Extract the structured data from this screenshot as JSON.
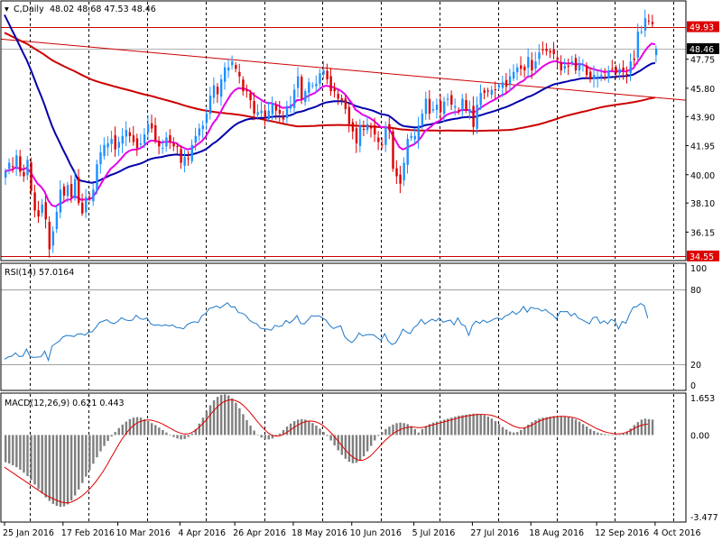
{
  "colors": {
    "background": "#ffffff",
    "frame": "#000000",
    "grid": "#000000",
    "bull": "#1e90ff",
    "bear": "#dc0000",
    "ma_fast": "#e600e6",
    "ma_mid": "#0000aa",
    "ma_slow": "#cc0000",
    "trend": "#cc0000",
    "rsi": "#1e78c8",
    "macd_hist": "#7f7f7f",
    "macd_signal": "#dd0000",
    "price_tag_bg": "#000000",
    "level_tag_bg": "#dd0000"
  },
  "header": {
    "symbol_text": "C,Daily",
    "ohlc_text": "48.02 48.68 47.53 48.46"
  },
  "chart_data": [
    {
      "type": "candlestick",
      "panel": "price",
      "symbol": "C",
      "timeframe": "Daily",
      "ylim": [
        34.3,
        51.6
      ],
      "yticks": [
        "49.93",
        "48.46",
        "47.75",
        "45.80",
        "43.90",
        "41.95",
        "40.00",
        "38.10",
        "36.15",
        "34.55"
      ],
      "current_price": "48.46",
      "horizontal_levels": [
        {
          "label": "49.93",
          "value": 49.93
        },
        {
          "label": "34.55",
          "value": 34.55
        }
      ],
      "last_ohlc": {
        "open": 48.02,
        "high": 48.68,
        "low": 47.53,
        "close": 48.46
      },
      "x_labels": [
        "25 Jan 2016",
        "17 Feb 2016",
        "10 Mar 2016",
        "4 Apr 2016",
        "26 Apr 2016",
        "18 May 2016",
        "10 Jun 2016",
        "5 Jul 2016",
        "27 Jul 2016",
        "18 Aug 2016",
        "12 Sep 2016",
        "4 Oct 2016"
      ],
      "x_label_bar_index": [
        0,
        16,
        31,
        48,
        63,
        79,
        95,
        112,
        128,
        144,
        162,
        178
      ],
      "vertical_grid_bar_index": [
        7,
        23,
        39,
        55,
        71,
        87,
        103,
        119,
        135,
        151,
        167,
        183
      ],
      "close": [
        40.2,
        40.8,
        40.5,
        41.3,
        40.2,
        39.9,
        41.0,
        38.9,
        37.6,
        37.2,
        38.0,
        37.0,
        35.0,
        36.2,
        37.5,
        39.0,
        38.6,
        39.3,
        38.5,
        39.7,
        38.1,
        37.4,
        38.5,
        38.4,
        39.0,
        40.7,
        41.5,
        42.0,
        42.1,
        42.4,
        41.7,
        42.2,
        42.6,
        43.0,
        42.6,
        42.2,
        41.8,
        42.1,
        42.7,
        43.4,
        43.1,
        42.3,
        41.9,
        41.8,
        42.5,
        42.2,
        41.9,
        41.9,
        40.8,
        41.2,
        41.1,
        42.0,
        42.6,
        43.1,
        43.3,
        44.1,
        45.3,
        46.0,
        45.4,
        46.4,
        47.2,
        47.2,
        47.6,
        47.1,
        46.6,
        45.6,
        45.6,
        45.0,
        44.1,
        44.2,
        44.3,
        43.9,
        44.3,
        44.8,
        44.3,
        44.1,
        43.7,
        44.6,
        44.7,
        45.7,
        46.6,
        45.1,
        45.6,
        46.2,
        46.0,
        46.1,
        46.8,
        47.0,
        46.4,
        45.6,
        45.6,
        45.1,
        45.0,
        44.4,
        43.4,
        42.9,
        42.1,
        43.3,
        43.0,
        43.4,
        43.1,
        42.7,
        42.2,
        42.0,
        43.2,
        43.0,
        40.4,
        39.9,
        39.4,
        40.8,
        42.4,
        42.6,
        42.6,
        43.3,
        44.1,
        45.1,
        44.1,
        44.4,
        44.7,
        44.2,
        44.9,
        45.1,
        44.7,
        44.6,
        44.3,
        45.1,
        44.3,
        44.4,
        43.2,
        44.7,
        45.5,
        45.5,
        45.6,
        45.7,
        45.7,
        46.0,
        46.2,
        45.9,
        46.6,
        46.9,
        47.2,
        47.1,
        47.0,
        47.9,
        47.0,
        47.6,
        48.2,
        48.4,
        48.3,
        48.2,
        48.1,
        47.7,
        47.0,
        47.3,
        47.3,
        47.6,
        47.0,
        47.5,
        47.4,
        46.7,
        46.4,
        46.7,
        46.6,
        46.7,
        46.5,
        47.0,
        47.1,
        46.8,
        47.1,
        47.0,
        46.7,
        47.6,
        47.7,
        49.6,
        49.6,
        50.5,
        50.3,
        50.1,
        48.5
      ]
    },
    {
      "type": "line",
      "panel": "rsi",
      "title": "RSI(14) 57.0164",
      "ylim": [
        0,
        100
      ],
      "yticks": [
        "100",
        "80",
        "20",
        "0"
      ],
      "levels": [
        80,
        20
      ],
      "values": [
        24.2,
        26.0,
        26.6,
        29.2,
        26.4,
        26.6,
        32.3,
        26.3,
        25.6,
        25.9,
        26.1,
        30.6,
        23.3,
        34.6,
        36.7,
        38.7,
        42.0,
        43.2,
        42.9,
        42.2,
        44.3,
        44.4,
        43.4,
        45.7,
        46.1,
        49.6,
        53.5,
        54.6,
        55.7,
        53.4,
        52.6,
        54.4,
        57.3,
        55.6,
        55.0,
        55.4,
        59.3,
        56.7,
        56.0,
        57.3,
        52.4,
        51.3,
        51.6,
        50.8,
        51.7,
        50.7,
        51.5,
        49.5,
        49.2,
        48.4,
        51.9,
        53.3,
        54.1,
        53.4,
        58.9,
        60.5,
        64.6,
        65.4,
        66.7,
        65.0,
        67.1,
        69.2,
        65.8,
        65.9,
        61.4,
        60.9,
        59.3,
        55.4,
        53.4,
        52.6,
        49.0,
        48.4,
        48.2,
        47.3,
        51.2,
        50.2,
        50.9,
        55.2,
        53.1,
        55.4,
        59.0,
        52.7,
        52.3,
        55.4,
        58.9,
        58.5,
        58.9,
        57.1,
        55.2,
        51.1,
        48.6,
        49.9,
        50.8,
        42.6,
        39.4,
        37.4,
        40.2,
        45.2,
        42.7,
        43.7,
        43.9,
        43.6,
        41.3,
        39.3,
        44.5,
        38.5,
        36.0,
        37.2,
        42.0,
        48.2,
        45.7,
        44.6,
        49.5,
        51.5,
        56.0,
        52.3,
        54.4,
        56.1,
        54.5,
        57.1,
        53.7,
        54.7,
        55.4,
        51.6,
        57.2,
        52.0,
        50.7,
        43.2,
        51.2,
        54.5,
        52.8,
        55.4,
        53.5,
        54.7,
        56.4,
        57.1,
        55.8,
        58.8,
        59.7,
        62.4,
        60.0,
        62.2,
        66.3,
        61.7,
        65.6,
        64.7,
        64.6,
        62.5,
        63.9,
        61.2,
        59.5,
        56.3,
        62.2,
        62.0,
        62.2,
        58.6,
        60.8,
        56.9,
        55.7,
        54.2,
        52.4,
        57.3,
        58.0,
        52.8,
        54.9,
        52.4,
        56.0,
        54.5,
        48.3,
        54.4,
        52.8,
        60.1,
        65.7,
        66.2,
        68.6,
        66.9,
        57.0
      ]
    },
    {
      "type": "bar",
      "panel": "macd",
      "title": "MACD(12,26,9) 0.621 0.443",
      "ylim": [
        -3.477,
        1.653
      ],
      "yticks": [
        "1.653",
        "0.00",
        "-3.477"
      ],
      "macd": [
        -1.1,
        -1.15,
        -1.22,
        -1.3,
        -1.4,
        -1.52,
        -1.66,
        -1.82,
        -2.0,
        -2.18,
        -2.36,
        -2.52,
        -2.66,
        -2.78,
        -2.86,
        -2.9,
        -2.88,
        -2.8,
        -2.64,
        -2.44,
        -2.2,
        -1.94,
        -1.68,
        -1.42,
        -1.16,
        -0.9,
        -0.66,
        -0.44,
        -0.24,
        -0.06,
        0.12,
        0.28,
        0.42,
        0.54,
        0.64,
        0.7,
        0.72,
        0.7,
        0.64,
        0.56,
        0.48,
        0.4,
        0.3,
        0.2,
        0.1,
        0.0,
        -0.08,
        -0.14,
        -0.18,
        -0.16,
        -0.08,
        0.06,
        0.24,
        0.46,
        0.7,
        0.96,
        1.2,
        1.4,
        1.54,
        1.62,
        1.64,
        1.6,
        1.48,
        1.3,
        1.08,
        0.84,
        0.6,
        0.38,
        0.18,
        0.02,
        -0.1,
        -0.16,
        -0.18,
        -0.14,
        -0.06,
        0.06,
        0.2,
        0.34,
        0.46,
        0.56,
        0.62,
        0.64,
        0.62,
        0.56,
        0.48,
        0.38,
        0.26,
        0.12,
        -0.04,
        -0.22,
        -0.42,
        -0.62,
        -0.8,
        -0.96,
        -1.08,
        -1.14,
        -1.12,
        -1.02,
        -0.86,
        -0.66,
        -0.44,
        -0.22,
        -0.04,
        0.12,
        0.24,
        0.34,
        0.42,
        0.48,
        0.5,
        0.48,
        0.44,
        0.36,
        0.24,
        0.1,
        0.24,
        0.36,
        0.44,
        0.5,
        0.54,
        0.58,
        0.62,
        0.66,
        0.7,
        0.74,
        0.78,
        0.8,
        0.82,
        0.84,
        0.86,
        0.86,
        0.84,
        0.8,
        0.74,
        0.66,
        0.56,
        0.44,
        0.32,
        0.22,
        0.14,
        0.1,
        0.12,
        0.2,
        0.3,
        0.42,
        0.52,
        0.6,
        0.66,
        0.7,
        0.72,
        0.74,
        0.76,
        0.76,
        0.76,
        0.74,
        0.72,
        0.68,
        0.62,
        0.54,
        0.44,
        0.34,
        0.24,
        0.16,
        0.1,
        0.06,
        0.04,
        0.02,
        0.0,
        0.0,
        0.02,
        0.06,
        0.14,
        0.26,
        0.4,
        0.52,
        0.62,
        0.66,
        0.64,
        0.62
      ],
      "signal": [
        -1.3,
        -1.4,
        -1.5,
        -1.6,
        -1.7,
        -1.8,
        -1.9,
        -2.0,
        -2.1,
        -2.2,
        -2.3,
        -2.4,
        -2.48,
        -2.55,
        -2.62,
        -2.68,
        -2.72,
        -2.74,
        -2.72,
        -2.66,
        -2.58,
        -2.48,
        -2.36,
        -2.22,
        -2.06,
        -1.88,
        -1.68,
        -1.46,
        -1.22,
        -0.96,
        -0.7,
        -0.44,
        -0.2,
        0.02,
        0.2,
        0.35,
        0.46,
        0.54,
        0.58,
        0.6,
        0.6,
        0.57,
        0.52,
        0.46,
        0.38,
        0.3,
        0.22,
        0.14,
        0.08,
        0.04,
        0.04,
        0.08,
        0.16,
        0.28,
        0.42,
        0.58,
        0.76,
        0.94,
        1.1,
        1.24,
        1.34,
        1.4,
        1.42,
        1.4,
        1.34,
        1.24,
        1.1,
        0.94,
        0.76,
        0.58,
        0.4,
        0.24,
        0.1,
        0.0,
        -0.04,
        -0.04,
        0.0,
        0.08,
        0.18,
        0.28,
        0.38,
        0.46,
        0.52,
        0.56,
        0.56,
        0.54,
        0.48,
        0.4,
        0.28,
        0.14,
        -0.02,
        -0.2,
        -0.38,
        -0.56,
        -0.72,
        -0.86,
        -0.96,
        -1.02,
        -1.02,
        -0.96,
        -0.86,
        -0.72,
        -0.56,
        -0.4,
        -0.24,
        -0.1,
        0.02,
        0.12,
        0.2,
        0.26,
        0.3,
        0.32,
        0.32,
        0.3,
        0.3,
        0.32,
        0.36,
        0.4,
        0.44,
        0.48,
        0.52,
        0.56,
        0.6,
        0.64,
        0.68,
        0.72,
        0.75,
        0.78,
        0.8,
        0.82,
        0.83,
        0.83,
        0.82,
        0.8,
        0.76,
        0.7,
        0.62,
        0.54,
        0.46,
        0.38,
        0.32,
        0.28,
        0.28,
        0.32,
        0.38,
        0.46,
        0.54,
        0.6,
        0.65,
        0.69,
        0.72,
        0.74,
        0.75,
        0.75,
        0.74,
        0.72,
        0.69,
        0.64,
        0.58,
        0.5,
        0.42,
        0.34,
        0.26,
        0.2,
        0.14,
        0.1,
        0.07,
        0.05,
        0.05,
        0.06,
        0.1,
        0.16,
        0.24,
        0.32,
        0.38,
        0.42,
        0.44
      ]
    }
  ]
}
